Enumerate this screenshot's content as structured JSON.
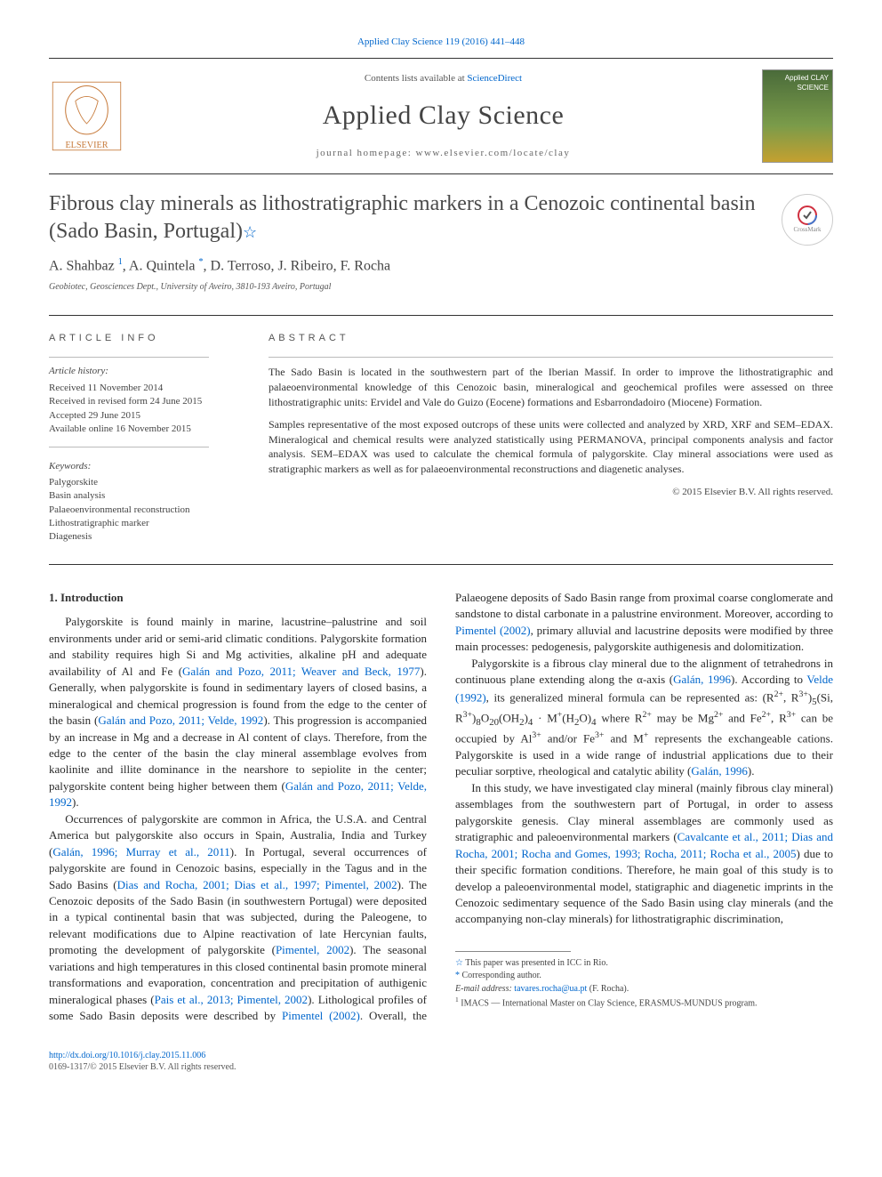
{
  "top_ref": "Applied Clay Science 119 (2016) 441–448",
  "header": {
    "contents_prefix": "Contents lists available at ",
    "contents_link": "ScienceDirect",
    "journal_name": "Applied Clay Science",
    "homepage_prefix": "journal homepage: ",
    "homepage_url": "www.elsevier.com/locate/clay",
    "cover_text": "Applied CLAY SCIENCE"
  },
  "crossmark_label": "CrossMark",
  "title": "Fibrous clay minerals as lithostratigraphic markers in a Cenozoic continental basin (Sado Basin, Portugal)",
  "authors_html": "A. Shahbaz <sup>1</sup>, A. Quintela <sup>*</sup>, D. Terroso, J. Ribeiro, F. Rocha",
  "affiliation": "Geobiotec, Geosciences Dept., University of Aveiro, 3810-193 Aveiro, Portugal",
  "article_info_heading": "ARTICLE INFO",
  "abstract_heading": "ABSTRACT",
  "article_history": {
    "label": "Article history:",
    "lines": [
      "Received 11 November 2014",
      "Received in revised form 24 June 2015",
      "Accepted 29 June 2015",
      "Available online 16 November 2015"
    ]
  },
  "keywords": {
    "label": "Keywords:",
    "items": [
      "Palygorskite",
      "Basin analysis",
      "Palaeoenvironmental reconstruction",
      "Lithostratigraphic marker",
      "Diagenesis"
    ]
  },
  "abstract_paragraphs": [
    "The Sado Basin is located in the southwestern part of the Iberian Massif. In order to improve the lithostratigraphic and palaeoenvironmental knowledge of this Cenozoic basin, mineralogical and geochemical profiles were assessed on three lithostratigraphic units: Ervidel and Vale do Guizo (Eocene) formations and Esbarrondadoiro (Miocene) Formation.",
    "Samples representative of the most exposed outcrops of these units were collected and analyzed by XRD, XRF and SEM–EDAX. Mineralogical and chemical results were analyzed statistically using PERMANOVA, principal components analysis and factor analysis. SEM–EDAX was used to calculate the chemical formula of palygorskite. Clay mineral associations were used as stratigraphic markers as well as for palaeoenvironmental reconstructions and diagenetic analyses."
  ],
  "copyright": "© 2015 Elsevier B.V. All rights reserved.",
  "section_heading": "1. Introduction",
  "body_paragraphs": [
    "Palygorskite is found mainly in marine, lacustrine–palustrine and soil environments under arid or semi-arid climatic conditions. Palygorskite formation and stability requires high Si and Mg activities, alkaline pH and adequate availability of Al and Fe (<span class=\"cite\">Galán and Pozo, 2011; Weaver and Beck, 1977</span>). Generally, when palygorskite is found in sedimentary layers of closed basins, a mineralogical and chemical progression is found from the edge to the center of the basin (<span class=\"cite\">Galán and Pozo, 2011; Velde, 1992</span>). This progression is accompanied by an increase in Mg and a decrease in Al content of clays. Therefore, from the edge to the center of the basin the clay mineral assemblage evolves from kaolinite and illite dominance in the nearshore to sepiolite in the center; palygorskite content being higher between them (<span class=\"cite\">Galán and Pozo, 2011; Velde, 1992</span>).",
    "Occurrences of palygorskite are common in Africa, the U.S.A. and Central America but palygorskite also occurs in Spain, Australia, India and Turkey (<span class=\"cite\">Galán, 1996; Murray et al., 2011</span>). In Portugal, several occurrences of palygorskite are found in Cenozoic basins, especially in the Tagus and in the Sado Basins (<span class=\"cite\">Dias and Rocha, 2001; Dias et al., 1997; Pimentel, 2002</span>). The Cenozoic deposits of the Sado Basin (in southwestern Portugal) were deposited in a typical continental basin that was subjected, during the Paleogene, to relevant modifications due to Alpine reactivation of late Hercynian faults, promoting the development of palygorskite (<span class=\"cite\">Pimentel, 2002</span>). The seasonal variations and high temperatures in this closed continental basin promote mineral transformations and evaporation, concentration and precipitation of authigenic mineralogical phases (<span class=\"cite\">Pais et al., 2013; Pimentel, 2002</span>). Lithological profiles of some Sado Basin deposits were described by <span class=\"cite\">Pimentel (2002)</span>. Overall, the Palaeogene deposits of Sado Basin range from proximal coarse conglomerate and sandstone to distal carbonate in a palustrine environment. Moreover, according to <span class=\"cite\">Pimentel (2002)</span>, primary alluvial and lacustrine deposits were modified by three main processes: pedogenesis, palygorskite authigenesis and dolomitization.",
    "Palygorskite is a fibrous clay mineral due to the alignment of tetrahedrons in continuous plane extending along the α-axis (<span class=\"cite\">Galán, 1996</span>). According to <span class=\"cite\">Velde (1992)</span>, its generalized mineral formula can be represented as: (R<sup>2+</sup>, R<sup>3+</sup>)<sub>5</sub>(Si, R<sup>3+</sup>)<sub>8</sub>O<sub>20</sub>(OH<sub>2</sub>)<sub>4</sub> · M<sup>+</sup>(H<sub>2</sub>O)<sub>4</sub> where R<sup>2+</sup> may be Mg<sup>2+</sup> and Fe<sup>2+</sup>, R<sup>3+</sup> can be occupied by Al<sup>3+</sup> and/or Fe<sup>3+</sup> and M<sup>+</sup> represents the exchangeable cations. Palygorskite is used in a wide range of industrial applications due to their peculiar sorptive, rheological and catalytic ability (<span class=\"cite\">Galán, 1996</span>).",
    "In this study, we have investigated clay mineral (mainly fibrous clay mineral) assemblages from the southwestern part of Portugal, in order to assess palygorskite genesis. Clay mineral assemblages are commonly used as stratigraphic and paleoenvironmental markers (<span class=\"cite\">Cavalcante et al., 2011; Dias and Rocha, 2001; Rocha and Gomes, 1993; Rocha, 2011; Rocha et al., 2005</span>) due to their specific formation conditions. Therefore, he main goal of this study is to develop a paleoenvironmental model, statigraphic and diagenetic imprints in the Cenozoic sedimentary sequence of the Sado Basin using clay minerals (and the accompanying non-clay minerals) for lithostratigraphic discrimination,"
  ],
  "footnotes": {
    "star": "This paper was presented in ICC in Rio.",
    "corresp": "Corresponding author.",
    "email_label": "E-mail address:",
    "email": "tavares.rocha@ua.pt",
    "email_name": "(F. Rocha).",
    "imacs": "IMACS — International Master on Clay Science, ERASMUS-MUNDUS program."
  },
  "bottom": {
    "doi": "http://dx.doi.org/10.1016/j.clay.2015.11.006",
    "issn_line": "0169-1317/© 2015 Elsevier B.V. All rights reserved."
  },
  "colors": {
    "link": "#0066cc",
    "text": "#2a2a2a",
    "rule": "#333333"
  }
}
